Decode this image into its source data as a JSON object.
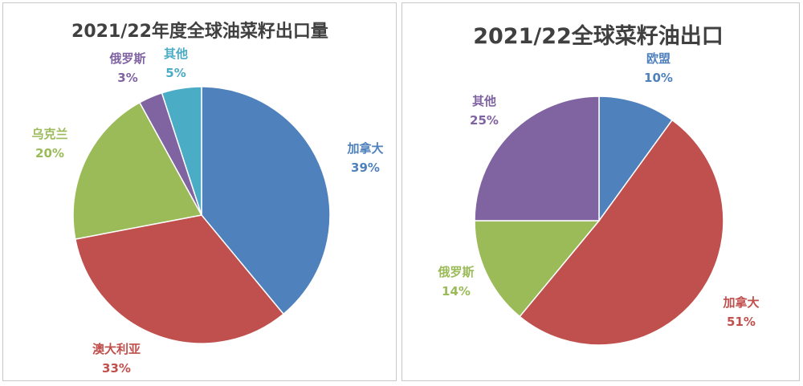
{
  "colors": {
    "blue": "#4f81bd",
    "red": "#c0504d",
    "green": "#9bbb59",
    "purple": "#8064a2",
    "cyan": "#4bacc6"
  },
  "chart_data": [
    {
      "type": "pie",
      "title": "2021/22年度全球油菜籽出口量",
      "slices": [
        {
          "label": "加拿大",
          "value": 39,
          "value_text": "39%",
          "color": "#4f81bd"
        },
        {
          "label": "澳大利亚",
          "value": 33,
          "value_text": "33%",
          "color": "#c0504d"
        },
        {
          "label": "乌克兰",
          "value": 20,
          "value_text": "20%",
          "color": "#9bbb59"
        },
        {
          "label": "俄罗斯",
          "value": 3,
          "value_text": "3%",
          "color": "#8064a2"
        },
        {
          "label": "其他",
          "value": 5,
          "value_text": "5%",
          "color": "#4bacc6"
        }
      ]
    },
    {
      "type": "pie",
      "title": "2021/22全球菜籽油出口",
      "slices": [
        {
          "label": "欧盟",
          "value": 10,
          "value_text": "10%",
          "color": "#4f81bd"
        },
        {
          "label": "加拿大",
          "value": 51,
          "value_text": "51%",
          "color": "#c0504d"
        },
        {
          "label": "俄罗斯",
          "value": 14,
          "value_text": "14%",
          "color": "#9bbb59"
        },
        {
          "label": "其他",
          "value": 25,
          "value_text": "25%",
          "color": "#8064a2"
        }
      ]
    }
  ]
}
